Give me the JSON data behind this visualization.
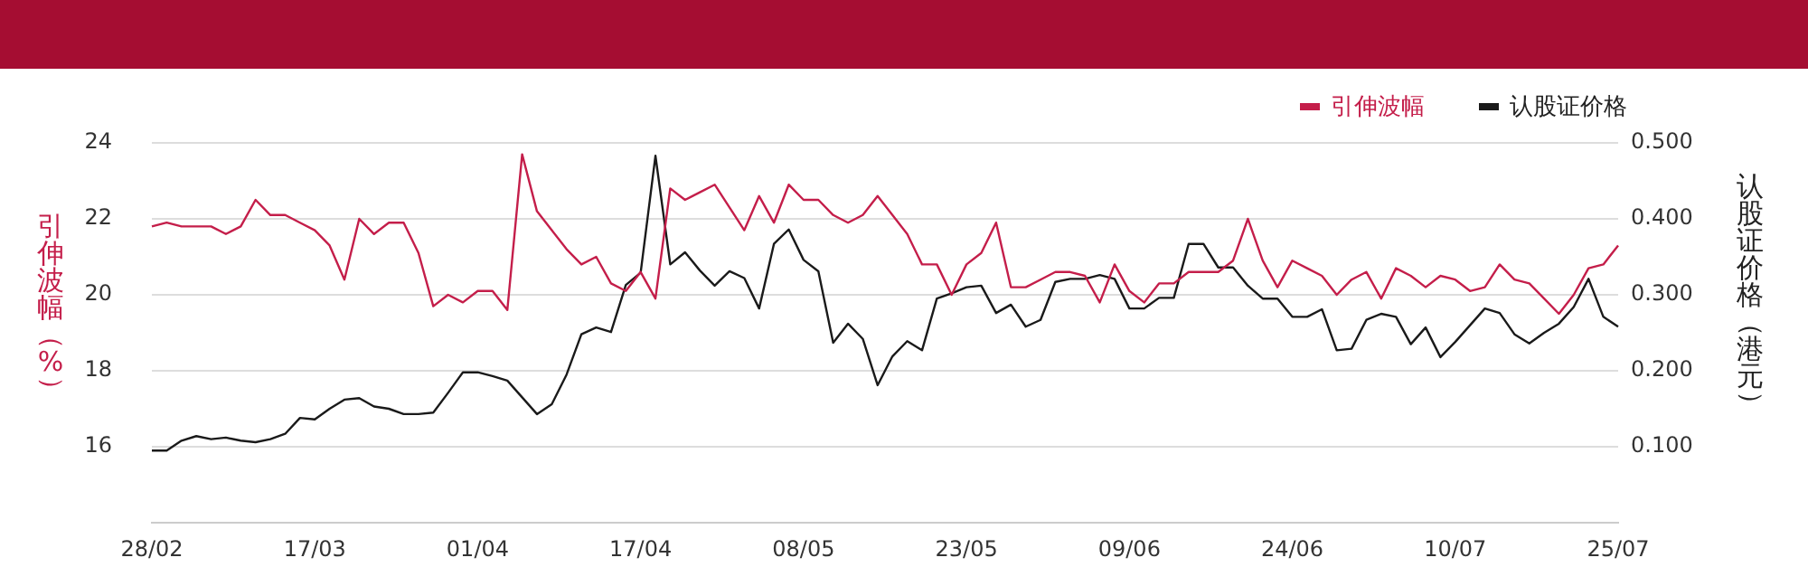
{
  "chart_data": {
    "type": "line",
    "categories": [
      "28/02",
      null,
      null,
      null,
      null,
      null,
      null,
      null,
      null,
      null,
      null,
      "17/03",
      null,
      null,
      null,
      null,
      null,
      null,
      null,
      null,
      null,
      null,
      "01/04",
      null,
      null,
      null,
      null,
      null,
      null,
      null,
      null,
      null,
      null,
      "17/04",
      null,
      null,
      null,
      null,
      null,
      null,
      null,
      null,
      null,
      null,
      "08/05",
      null,
      null,
      null,
      null,
      null,
      null,
      null,
      null,
      null,
      null,
      "23/05",
      null,
      null,
      null,
      null,
      null,
      null,
      null,
      null,
      null,
      null,
      "09/06",
      null,
      null,
      null,
      null,
      null,
      null,
      null,
      null,
      null,
      null,
      "24/06",
      null,
      null,
      null,
      null,
      null,
      null,
      null,
      null,
      null,
      null,
      "10/07",
      null,
      null,
      null,
      null,
      null,
      null,
      null,
      null,
      null,
      null,
      "25/07"
    ],
    "series": [
      {
        "name": "引伸波幅",
        "color": "#c41e4a",
        "values": [
          21.8,
          21.9,
          21.8,
          21.8,
          21.8,
          21.6,
          21.8,
          22.5,
          22.1,
          22.1,
          21.9,
          21.7,
          21.3,
          20.4,
          22.0,
          21.6,
          21.9,
          21.9,
          21.1,
          19.7,
          20.0,
          19.8,
          20.1,
          20.1,
          19.6,
          23.7,
          22.2,
          21.7,
          21.2,
          20.8,
          21.0,
          20.3,
          20.1,
          20.6,
          19.9,
          22.8,
          22.5,
          22.7,
          22.9,
          22.3,
          21.7,
          22.6,
          21.9,
          22.9,
          22.5,
          22.5,
          22.1,
          21.9,
          22.1,
          22.6,
          22.1,
          21.6,
          20.8,
          20.8,
          20.0,
          20.8,
          21.1,
          21.9,
          20.2,
          20.2,
          20.4,
          20.6,
          20.6,
          20.5,
          19.8,
          20.8,
          20.1,
          19.8,
          20.3,
          20.3,
          20.6,
          20.6,
          20.6,
          20.9,
          22.0,
          20.9,
          20.2,
          20.9,
          20.7,
          20.5,
          20.0,
          20.4,
          20.6,
          19.9,
          20.7,
          20.5,
          20.2,
          20.5,
          20.4,
          20.1,
          20.2,
          20.8,
          20.4,
          20.3,
          19.9,
          19.5,
          20.0,
          20.7,
          20.8,
          21.3
        ]
      },
      {
        "name": "认股证价格",
        "color": "#1a1a1a",
        "axis": "y2",
        "values": [
          0.095,
          0.095,
          0.108,
          0.114,
          0.11,
          0.112,
          0.108,
          0.106,
          0.11,
          0.117,
          0.138,
          0.136,
          0.15,
          0.162,
          0.164,
          0.153,
          0.15,
          0.143,
          0.143,
          0.145,
          0.171,
          0.198,
          0.198,
          0.193,
          0.187,
          0.165,
          0.143,
          0.156,
          0.195,
          0.248,
          0.257,
          0.251,
          0.313,
          0.329,
          0.483,
          0.34,
          0.356,
          0.332,
          0.312,
          0.331,
          0.322,
          0.282,
          0.367,
          0.386,
          0.346,
          0.331,
          0.237,
          0.262,
          0.242,
          0.181,
          0.219,
          0.239,
          0.227,
          0.295,
          0.302,
          0.31,
          0.312,
          0.276,
          0.287,
          0.258,
          0.267,
          0.317,
          0.321,
          0.321,
          0.326,
          0.321,
          0.282,
          0.282,
          0.296,
          0.296,
          0.367,
          0.367,
          0.336,
          0.336,
          0.312,
          0.295,
          0.295,
          0.271,
          0.271,
          0.281,
          0.227,
          0.229,
          0.267,
          0.275,
          0.271,
          0.235,
          0.257,
          0.218,
          0.238,
          0.26,
          0.282,
          0.276,
          0.248,
          0.236,
          0.25,
          0.262,
          0.284,
          0.321,
          0.271,
          0.258
        ]
      }
    ],
    "ylabel": "引伸波幅（%）",
    "y2label": "认股证价格（港元）",
    "ylim": [
      14,
      24
    ],
    "yticks": [
      16,
      18,
      20,
      22,
      24
    ],
    "y2lim": [
      0,
      0.5
    ],
    "y2ticks": [
      {
        "value": 0.1,
        "label": "0.100"
      },
      {
        "value": 0.2,
        "label": "0.200"
      },
      {
        "value": 0.3,
        "label": "0.300"
      },
      {
        "value": 0.4,
        "label": "0.400"
      },
      {
        "value": 0.5,
        "label": "0.500"
      }
    ],
    "grid": "y",
    "legend": "top right",
    "marker": "none"
  }
}
